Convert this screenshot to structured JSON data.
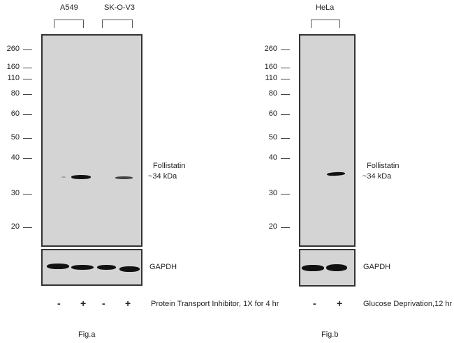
{
  "fig_a": {
    "lanes_groups": [
      "A549",
      "SK-O-V3"
    ],
    "markers": [
      "260",
      "160",
      "110",
      "80",
      "60",
      "50",
      "40",
      "30",
      "20"
    ],
    "target_label": "Follistatin",
    "target_size": "~34 kDa",
    "loading_control": "GAPDH",
    "treatment_signs": [
      "-",
      "+",
      "-",
      "+"
    ],
    "treatment_label": "Protein Transport Inhibitor, 1X for 4 hr",
    "caption": "Fig.a"
  },
  "fig_b": {
    "lanes_groups": [
      "HeLa"
    ],
    "markers": [
      "260",
      "160",
      "110",
      "80",
      "60",
      "50",
      "40",
      "30",
      "20"
    ],
    "target_label": "Follistatin",
    "target_size": "~34 kDa",
    "loading_control": "GAPDH",
    "treatment_signs": [
      "-",
      "+"
    ],
    "treatment_label": "Glucose Deprivation,12 hr",
    "caption": "Fig.b"
  },
  "colors": {
    "membrane": "#d4d4d4",
    "band": "#111111"
  }
}
